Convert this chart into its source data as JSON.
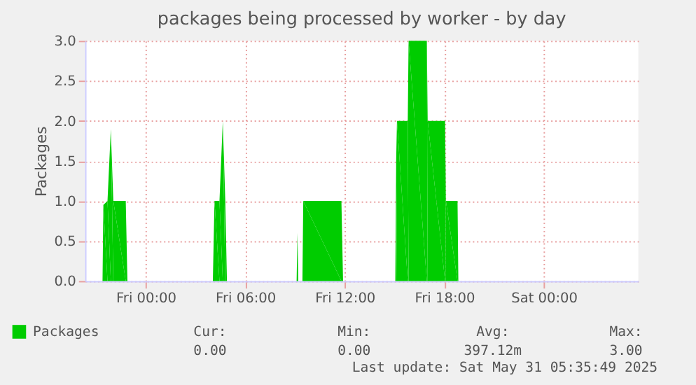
{
  "chart_data": {
    "type": "area",
    "title": "packages being processed by worker - by day",
    "ylabel": "Packages",
    "x": [
      "2025-05-29T20:21",
      "2025-05-29T21:24",
      "2025-05-29T21:27",
      "2025-05-29T21:42",
      "2025-05-29T21:54",
      "2025-05-29T22:03",
      "2025-05-29T22:48",
      "2025-05-29T22:54",
      "2025-05-30T04:03",
      "2025-05-30T04:09",
      "2025-05-30T04:27",
      "2025-05-30T04:39",
      "2025-05-30T04:48",
      "2025-05-30T04:54",
      "2025-05-30T09:06",
      "2025-05-30T09:09",
      "2025-05-30T09:12",
      "2025-05-30T09:27",
      "2025-05-30T09:30",
      "2025-05-30T11:48",
      "2025-05-30T11:54",
      "2025-05-30T15:03",
      "2025-05-30T15:06",
      "2025-05-30T15:09",
      "2025-05-30T15:48",
      "2025-05-30T15:51",
      "2025-05-30T16:57",
      "2025-05-30T17:00",
      "2025-05-30T18:03",
      "2025-05-30T18:06",
      "2025-05-30T18:48",
      "2025-05-30T18:51",
      "2025-05-31T05:36"
    ],
    "series": [
      {
        "name": "Packages",
        "color": "#00cc00",
        "values": [
          0,
          0,
          0.95,
          1,
          1.9,
          1,
          1,
          0,
          0,
          1,
          1,
          2,
          1,
          0,
          0,
          0.6,
          0,
          0,
          1,
          1,
          0,
          0,
          1.5,
          2,
          2,
          3,
          3,
          2,
          2,
          1,
          1,
          0,
          0
        ]
      }
    ],
    "xlim": [
      "2025-05-29T20:21",
      "2025-05-31T05:42"
    ],
    "xticks": [
      {
        "value": "2025-05-30T00:00",
        "label": "Fri 00:00"
      },
      {
        "value": "2025-05-30T06:00",
        "label": "Fri 06:00"
      },
      {
        "value": "2025-05-30T12:00",
        "label": "Fri 12:00"
      },
      {
        "value": "2025-05-30T18:00",
        "label": "Fri 18:00"
      },
      {
        "value": "2025-05-31T00:00",
        "label": "Sat 00:00"
      }
    ],
    "ylim": [
      0,
      3
    ],
    "yticks": [
      {
        "value": 0,
        "label": "0.0"
      },
      {
        "value": 0.5,
        "label": "0.5"
      },
      {
        "value": 1,
        "label": "1.0"
      },
      {
        "value": 1.5,
        "label": "1.5"
      },
      {
        "value": 2,
        "label": "2.0"
      },
      {
        "value": 2.5,
        "label": "2.5"
      },
      {
        "value": 3,
        "label": "3.0"
      }
    ],
    "grid": true,
    "legend": "bottom left",
    "annotations": [
      "Cur:",
      "Min:",
      "Avg:",
      "Max:",
      "0.00",
      "0.00",
      "397.12m",
      "3.00",
      "Last update: Sat May 31 05:35:49 2025"
    ]
  }
}
